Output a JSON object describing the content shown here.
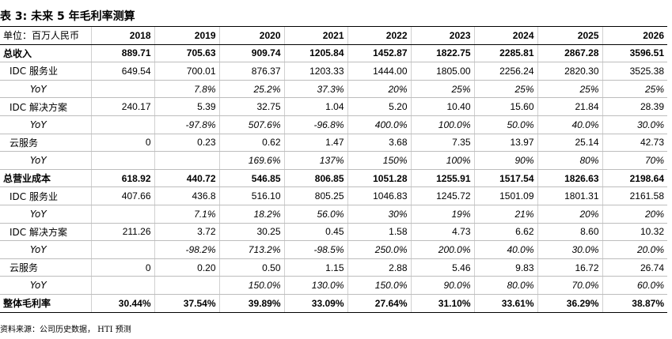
{
  "title": "表 3: 未来 5 年毛利率测算",
  "header": {
    "unit_label": "单位：百万人民币",
    "years": [
      "2018",
      "2019",
      "2020",
      "2021",
      "2022",
      "2023",
      "2024",
      "2025",
      "2026"
    ]
  },
  "rows": [
    {
      "label": "总收入",
      "values": [
        "889.71",
        "705.63",
        "909.74",
        "1205.84",
        "1452.87",
        "1822.75",
        "2285.81",
        "2867.28",
        "3596.51"
      ]
    },
    {
      "label": "IDC 服务业",
      "values": [
        "649.54",
        "700.01",
        "876.37",
        "1203.33",
        "1444.00",
        "1805.00",
        "2256.24",
        "2820.30",
        "3525.38"
      ]
    },
    {
      "label": "YoY",
      "values": [
        "",
        "7.8%",
        "25.2%",
        "37.3%",
        "20%",
        "25%",
        "25%",
        "25%",
        "25%"
      ]
    },
    {
      "label": "IDC 解决方案",
      "values": [
        "240.17",
        "5.39",
        "32.75",
        "1.04",
        "5.20",
        "10.40",
        "15.60",
        "21.84",
        "28.39"
      ]
    },
    {
      "label": "YoY",
      "values": [
        "",
        "-97.8%",
        "507.6%",
        "-96.8%",
        "400.0%",
        "100.0%",
        "50.0%",
        "40.0%",
        "30.0%"
      ]
    },
    {
      "label": "云服务",
      "values": [
        "0",
        "0.23",
        "0.62",
        "1.47",
        "3.68",
        "7.35",
        "13.97",
        "25.14",
        "42.73"
      ]
    },
    {
      "label": "YoY",
      "values": [
        "",
        "",
        "169.6%",
        "137%",
        "150%",
        "100%",
        "90%",
        "80%",
        "70%"
      ]
    },
    {
      "label": "总营业成本",
      "values": [
        "618.92",
        "440.72",
        "546.85",
        "806.85",
        "1051.28",
        "1255.91",
        "1517.54",
        "1826.63",
        "2198.64"
      ]
    },
    {
      "label": "IDC 服务业",
      "values": [
        "407.66",
        "436.8",
        "516.10",
        "805.25",
        "1046.83",
        "1245.72",
        "1501.09",
        "1801.31",
        "2161.58"
      ]
    },
    {
      "label": "YoY",
      "values": [
        "",
        "7.1%",
        "18.2%",
        "56.0%",
        "30%",
        "19%",
        "21%",
        "20%",
        "20%"
      ]
    },
    {
      "label": "IDC 解决方案",
      "values": [
        "211.26",
        "3.72",
        "30.25",
        "0.45",
        "1.58",
        "4.73",
        "6.62",
        "8.60",
        "10.32"
      ]
    },
    {
      "label": "YoY",
      "values": [
        "",
        "-98.2%",
        "713.2%",
        "-98.5%",
        "250.0%",
        "200.0%",
        "40.0%",
        "30.0%",
        "20.0%"
      ]
    },
    {
      "label": "云服务",
      "values": [
        "0",
        "0.20",
        "0.50",
        "1.15",
        "2.88",
        "5.46",
        "9.83",
        "16.72",
        "26.74"
      ]
    },
    {
      "label": "YoY",
      "values": [
        "",
        "",
        "150.0%",
        "130.0%",
        "150.0%",
        "90.0%",
        "80.0%",
        "70.0%",
        "60.0%"
      ]
    },
    {
      "label": "整体毛利率",
      "values": [
        "30.44%",
        "37.54%",
        "39.89%",
        "33.09%",
        "27.64%",
        "31.10%",
        "33.61%",
        "36.29%",
        "38.87%"
      ]
    }
  ],
  "source": "资料来源：公司历史数据， HTI 预测"
}
